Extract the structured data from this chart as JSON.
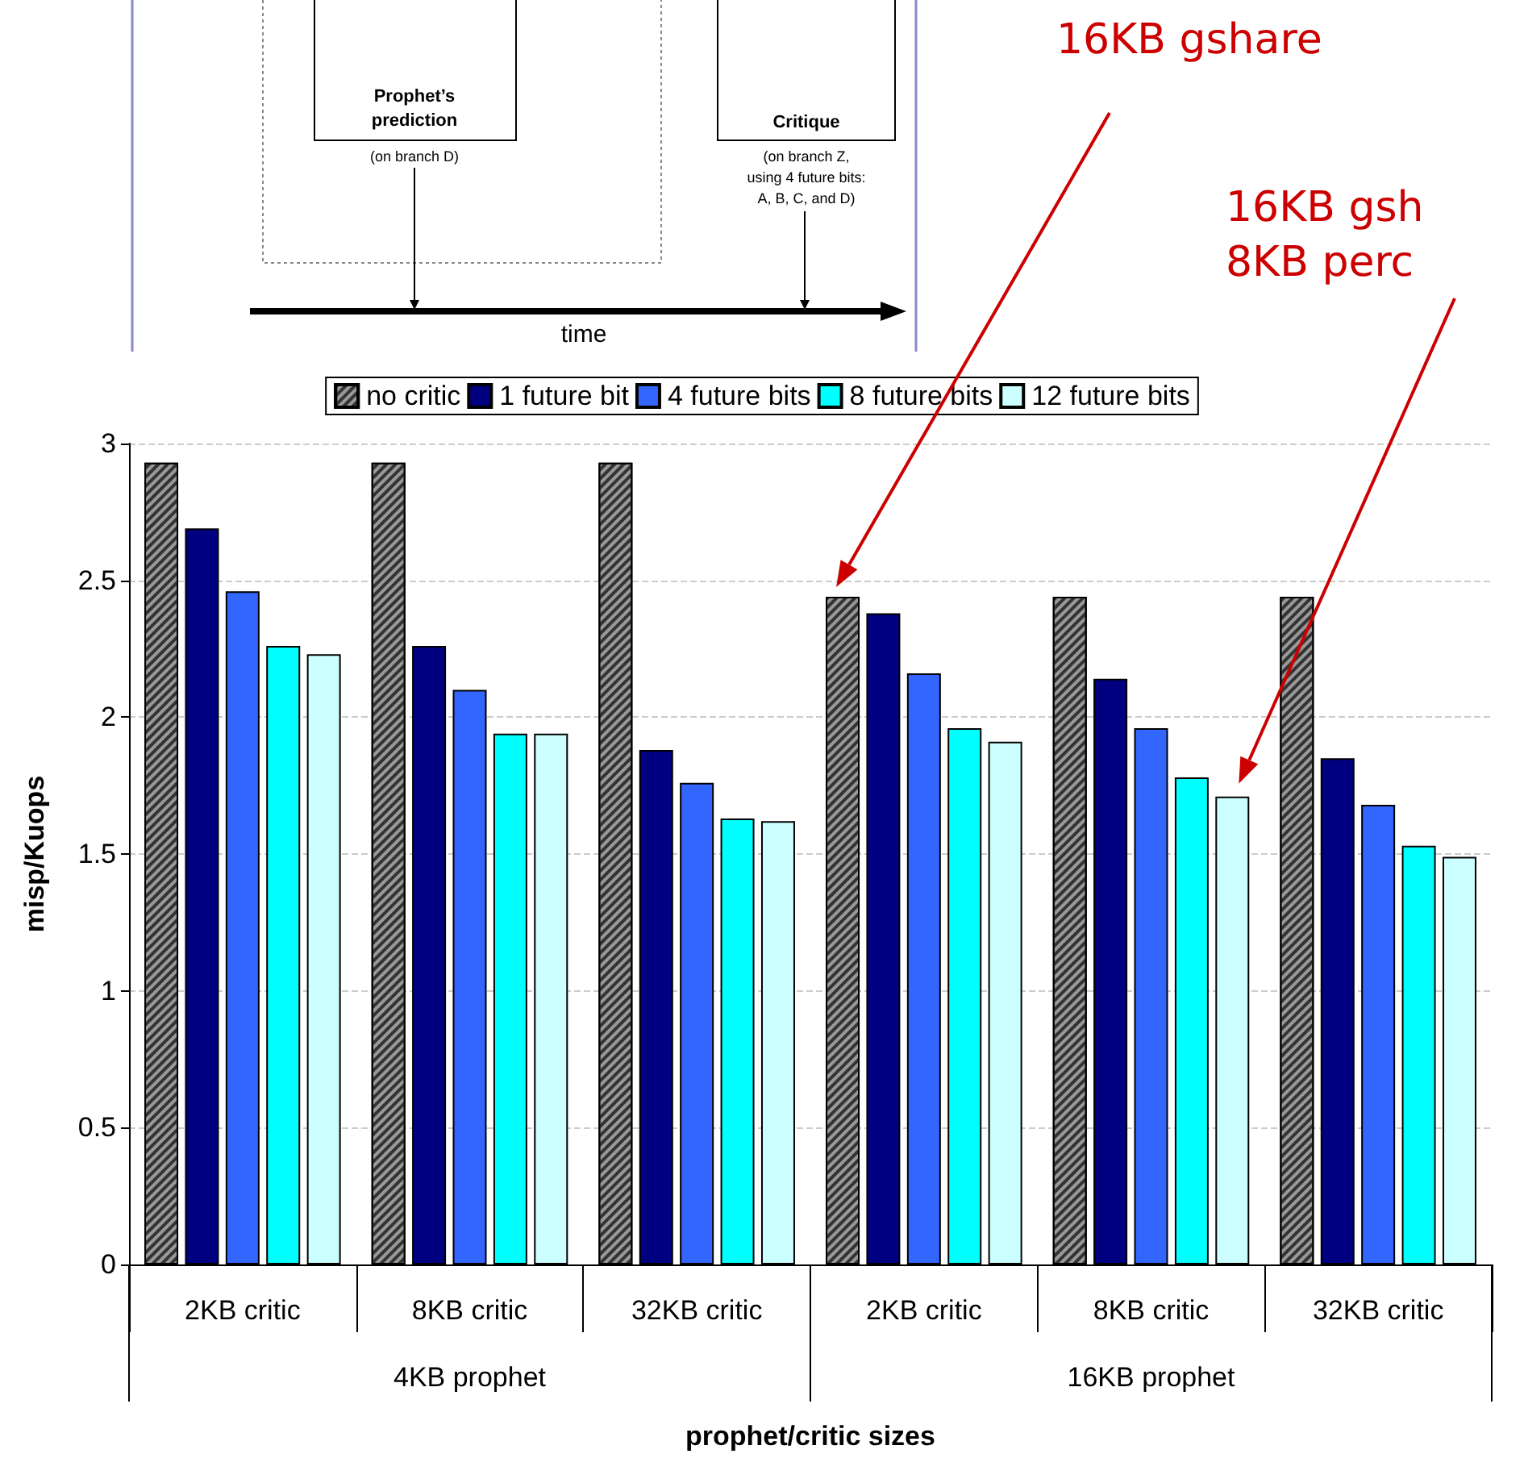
{
  "chart_data": {
    "type": "bar",
    "xlabel": "prophet/critic sizes",
    "ylabel": "misp/Kuops",
    "categories": [
      "2KB critic",
      "8KB critic",
      "32KB critic",
      "2KB critic",
      "8KB critic",
      "32KB critic"
    ],
    "series": [
      {
        "name": "no critic",
        "color": "#999999",
        "values": [
          2.93,
          2.93,
          2.93,
          2.44,
          2.44,
          2.44
        ]
      },
      {
        "name": "1 future bit",
        "color": "#000080",
        "values": [
          2.69,
          2.26,
          1.88,
          2.38,
          2.14,
          1.85
        ]
      },
      {
        "name": "4 future bits",
        "color": "#3366ff",
        "values": [
          2.46,
          2.1,
          1.76,
          2.16,
          1.96,
          1.68
        ]
      },
      {
        "name": "8 future bits",
        "color": "#00ffff",
        "values": [
          2.26,
          1.94,
          1.63,
          1.96,
          1.78,
          1.53
        ]
      },
      {
        "name": "12 future bits",
        "color": "#ccffff",
        "values": [
          2.23,
          1.94,
          1.62,
          1.91,
          1.71,
          1.49
        ]
      }
    ],
    "ylim": [
      0,
      3
    ],
    "yticks": [
      0,
      0.5,
      1,
      1.5,
      2,
      2.5,
      3
    ],
    "grid": "y",
    "legend": "top",
    "annotations": [
      "Prophet’s prediction",
      "(on branch D)",
      "Critique",
      "(on branch Z, using 4 future bits: A, B, C, and D)",
      "time",
      "4KB prophet",
      "16KB prophet",
      "16KB gshare",
      "16KB gsh",
      "8KB perc"
    ]
  }
}
